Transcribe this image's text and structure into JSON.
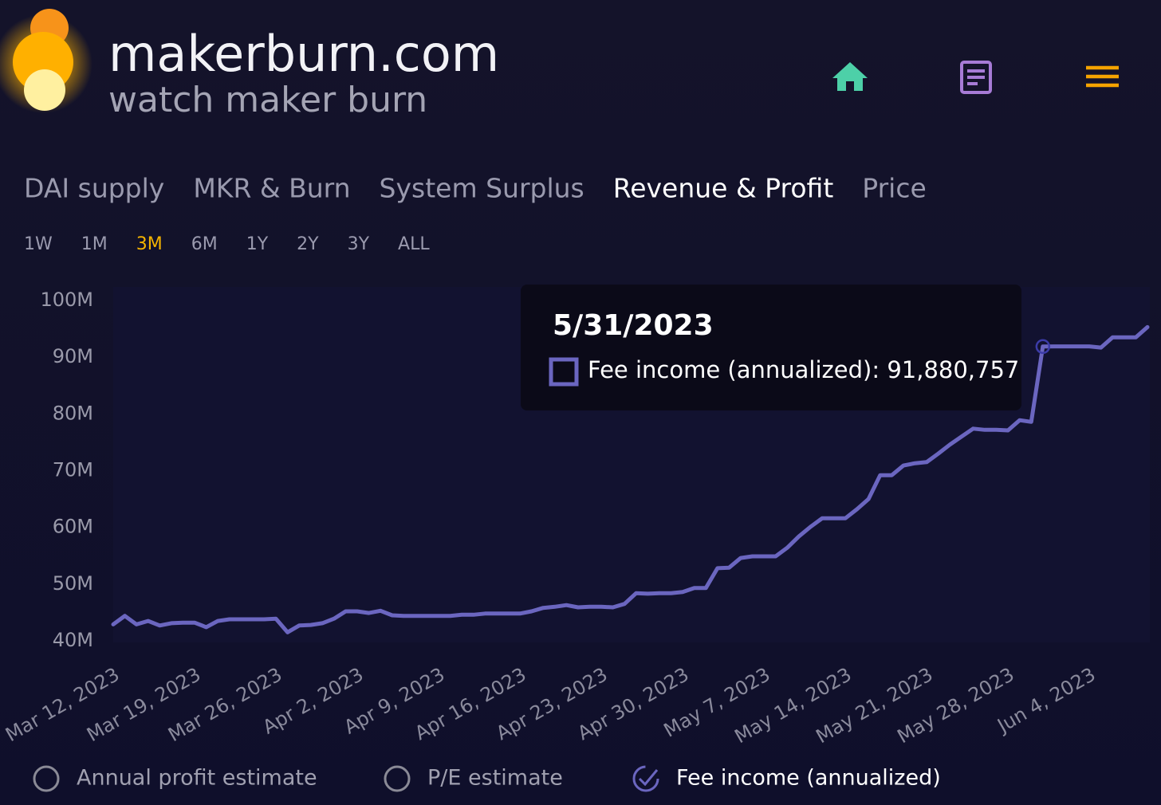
{
  "header": {
    "title": "makerburn.com",
    "subtitle": "watch maker burn"
  },
  "tabs": [
    {
      "label": "DAI supply",
      "selected": false
    },
    {
      "label": "MKR & Burn",
      "selected": false
    },
    {
      "label": "System Surplus",
      "selected": false
    },
    {
      "label": "Revenue & Profit",
      "selected": true
    },
    {
      "label": "Price",
      "selected": false
    }
  ],
  "ranges": [
    {
      "label": "1W",
      "selected": false
    },
    {
      "label": "1M",
      "selected": false
    },
    {
      "label": "3M",
      "selected": true
    },
    {
      "label": "6M",
      "selected": false
    },
    {
      "label": "1Y",
      "selected": false
    },
    {
      "label": "2Y",
      "selected": false
    },
    {
      "label": "3Y",
      "selected": false
    },
    {
      "label": "ALL",
      "selected": false
    }
  ],
  "chart_data": {
    "type": "line",
    "x": [
      "2023-03-12",
      "2023-03-13",
      "2023-03-14",
      "2023-03-15",
      "2023-03-16",
      "2023-03-17",
      "2023-03-18",
      "2023-03-19",
      "2023-03-20",
      "2023-03-21",
      "2023-03-22",
      "2023-03-23",
      "2023-03-24",
      "2023-03-25",
      "2023-03-26",
      "2023-03-27",
      "2023-03-28",
      "2023-03-29",
      "2023-03-30",
      "2023-03-31",
      "2023-04-01",
      "2023-04-02",
      "2023-04-03",
      "2023-04-04",
      "2023-04-05",
      "2023-04-06",
      "2023-04-07",
      "2023-04-08",
      "2023-04-09",
      "2023-04-10",
      "2023-04-11",
      "2023-04-12",
      "2023-04-13",
      "2023-04-14",
      "2023-04-15",
      "2023-04-16",
      "2023-04-17",
      "2023-04-18",
      "2023-04-19",
      "2023-04-20",
      "2023-04-21",
      "2023-04-22",
      "2023-04-23",
      "2023-04-24",
      "2023-04-25",
      "2023-04-26",
      "2023-04-27",
      "2023-04-28",
      "2023-04-29",
      "2023-04-30",
      "2023-05-01",
      "2023-05-02",
      "2023-05-03",
      "2023-05-04",
      "2023-05-05",
      "2023-05-06",
      "2023-05-07",
      "2023-05-08",
      "2023-05-09",
      "2023-05-10",
      "2023-05-11",
      "2023-05-12",
      "2023-05-13",
      "2023-05-14",
      "2023-05-15",
      "2023-05-16",
      "2023-05-17",
      "2023-05-18",
      "2023-05-19",
      "2023-05-20",
      "2023-05-21",
      "2023-05-22",
      "2023-05-23",
      "2023-05-24",
      "2023-05-25",
      "2023-05-26",
      "2023-05-27",
      "2023-05-28",
      "2023-05-29",
      "2023-05-30",
      "2023-05-31",
      "2023-06-01",
      "2023-06-02",
      "2023-06-03",
      "2023-06-04",
      "2023-06-05",
      "2023-06-06",
      "2023-06-07",
      "2023-06-08",
      "2023-06-09"
    ],
    "xlim": [
      "2023-03-12",
      "2023-06-09"
    ],
    "xticks": [
      {
        "value": "2023-03-12",
        "label": "Mar 12, 2023"
      },
      {
        "value": "2023-03-19",
        "label": "Mar 19, 2023"
      },
      {
        "value": "2023-03-26",
        "label": "Mar 26, 2023"
      },
      {
        "value": "2023-04-02",
        "label": "Apr 2, 2023"
      },
      {
        "value": "2023-04-09",
        "label": "Apr 9, 2023"
      },
      {
        "value": "2023-04-16",
        "label": "Apr 16, 2023"
      },
      {
        "value": "2023-04-23",
        "label": "Apr 23, 2023"
      },
      {
        "value": "2023-04-30",
        "label": "Apr 30, 2023"
      },
      {
        "value": "2023-05-07",
        "label": "May 7, 2023"
      },
      {
        "value": "2023-05-14",
        "label": "May 14, 2023"
      },
      {
        "value": "2023-05-21",
        "label": "May 21, 2023"
      },
      {
        "value": "2023-05-28",
        "label": "May 28, 2023"
      },
      {
        "value": "2023-06-04",
        "label": "Jun 4, 2023"
      }
    ],
    "ylim": [
      40000000,
      100000000
    ],
    "yticks": [
      {
        "value": 40000000,
        "label": "40M"
      },
      {
        "value": 50000000,
        "label": "50M"
      },
      {
        "value": 60000000,
        "label": "60M"
      },
      {
        "value": 70000000,
        "label": "70M"
      },
      {
        "value": 80000000,
        "label": "80M"
      },
      {
        "value": 90000000,
        "label": "90M"
      },
      {
        "value": 100000000,
        "label": "100M"
      }
    ],
    "grid": false,
    "series": [
      {
        "name": "Fee income (annualized)",
        "color": "#6b66c0",
        "values": [
          42900000,
          44400000,
          42900000,
          43500000,
          42700000,
          43100000,
          43200000,
          43200000,
          42400000,
          43500000,
          43800000,
          43800000,
          43800000,
          43800000,
          43900000,
          41500000,
          42700000,
          42800000,
          43100000,
          43900000,
          45200000,
          45200000,
          44900000,
          45300000,
          44500000,
          44400000,
          44400000,
          44400000,
          44400000,
          44400000,
          44600000,
          44600000,
          44800000,
          44800000,
          44800000,
          44800000,
          45200000,
          45800000,
          46000000,
          46300000,
          45900000,
          46000000,
          46000000,
          45900000,
          46500000,
          48400000,
          48300000,
          48400000,
          48400000,
          48600000,
          49300000,
          49300000,
          52800000,
          52900000,
          54600000,
          54900000,
          54900000,
          54900000,
          56400000,
          58400000,
          60100000,
          61600000,
          61600000,
          61600000,
          63200000,
          65000000,
          69200000,
          69200000,
          70900000,
          71300000,
          71500000,
          73000000,
          74600000,
          76000000,
          77400000,
          77200000,
          77200000,
          77100000,
          78900000,
          78600000,
          91880757,
          91900000,
          91900000,
          91900000,
          91900000,
          91700000,
          93500000,
          93500000,
          93500000,
          95300000
        ]
      }
    ],
    "tooltip": {
      "title": "5/31/2023",
      "label": "Fee income (annualized):",
      "value": 91880757,
      "value_label": "91,880,757"
    }
  },
  "legend": [
    {
      "name": "Annual profit estimate",
      "checked": false
    },
    {
      "name": "P/E estimate",
      "checked": false
    },
    {
      "name": "Fee income (annualized)",
      "checked": true
    }
  ]
}
